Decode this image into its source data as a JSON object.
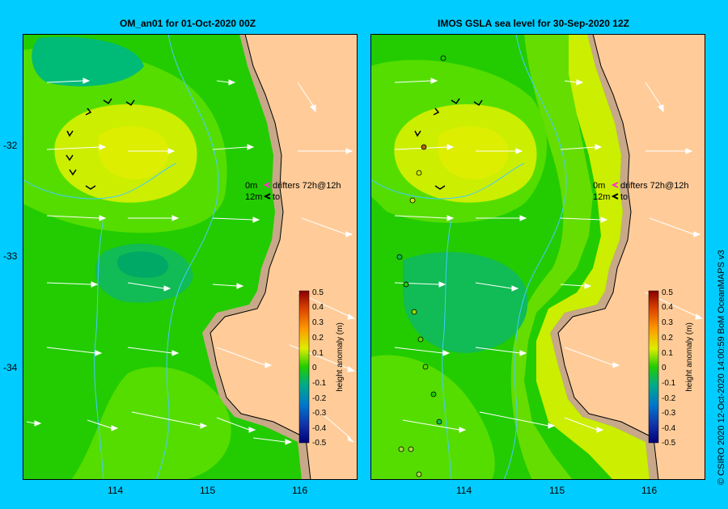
{
  "panels": [
    {
      "title": "OM_an01  for 01-Oct-2020 00Z",
      "legend_line1": "drifters 72h@12h",
      "legend_line2": "to",
      "legend_depth1": "0m",
      "legend_depth2": "12m"
    },
    {
      "title": "IMOS GSLA sea level  for 30-Sep-2020 12Z",
      "legend_line1": "drifters 72h@12h",
      "legend_line2": "to",
      "legend_depth1": "0m",
      "legend_depth2": "12m"
    }
  ],
  "axes": {
    "y_ticks": [
      "-32",
      "-33",
      "-34"
    ],
    "x_ticks": [
      "114",
      "115",
      "116"
    ]
  },
  "colorbar": {
    "label": "height anomaly (m)",
    "ticks": [
      "0.5",
      "0.4",
      "0.3",
      "0.2",
      "0.1",
      "0",
      "-0.1",
      "-0.2",
      "-0.3",
      "-0.4",
      "-0.5"
    ]
  },
  "copyright": "© CSIRO 2020   12-Oct-2020 14:00:59 BoM OceanMAPS v3",
  "colors": {
    "background": "#00ccff",
    "land": "#ffcc99",
    "shelf": "#c8a888",
    "green": "#22cc00",
    "light_green": "#66dd00",
    "yellow": "#ccee00",
    "teal": "#00aa66",
    "drifter_legend": "#ff33cc"
  }
}
